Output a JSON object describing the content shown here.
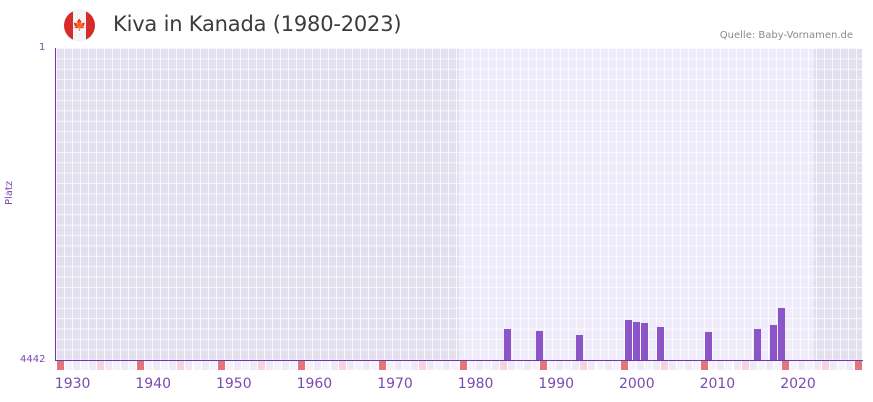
{
  "header": {
    "title": "Kiva in Kanada (1980-2023)",
    "source": "Quelle: Baby-Vornamen.de",
    "flag": "canada-flag-icon"
  },
  "colors": {
    "bar": "#8b54c7",
    "axis": "#6a3aa8",
    "label": "#7a4bb0",
    "band_dark": "#e3dfee",
    "band_light": "#efebfa",
    "marker_strong": "#e5757d",
    "marker_light": "#f4d5df",
    "marker_cell": "#efeaf8"
  },
  "chart_data": {
    "type": "bar",
    "title": "Kiva in Kanada (1980-2023)",
    "xlabel": "",
    "ylabel": "Platz",
    "y_inverted": true,
    "ylim": [
      4442,
      1
    ],
    "ytick_labels": [
      "1",
      "4442"
    ],
    "xlim": [
      1928,
      2028
    ],
    "xtick_labels": [
      "1930",
      "1940",
      "1950",
      "1960",
      "1970",
      "1980",
      "1990",
      "2000",
      "2010",
      "2020"
    ],
    "grid": true,
    "legend": null,
    "highlighted_range": [
      1978,
      2022
    ],
    "x": [
      1984,
      1988,
      1993,
      1999,
      2000,
      2001,
      2003,
      2009,
      2015,
      2017,
      2018
    ],
    "values": [
      4000,
      4030,
      4085,
      3870,
      3900,
      3915,
      3975,
      4045,
      4000,
      3945,
      3700
    ],
    "series": [
      {
        "name": "Platz",
        "x": [
          1984,
          1988,
          1993,
          1999,
          2000,
          2001,
          2003,
          2009,
          2015,
          2017,
          2018
        ],
        "values": [
          4000,
          4030,
          4085,
          3870,
          3900,
          3915,
          3975,
          4045,
          4000,
          3945,
          3700
        ]
      }
    ],
    "decade_markers_strong": [
      1928,
      1938,
      1948,
      1958,
      1968,
      1978,
      1988,
      1998,
      2008,
      2018,
      2028
    ],
    "decade_markers_light": [
      1933,
      1943,
      1953,
      1963,
      1973,
      1983,
      1993,
      2003,
      2013,
      2023
    ]
  },
  "axis": {
    "y_top": "1",
    "y_bottom": "4442",
    "y_title": "Platz"
  }
}
